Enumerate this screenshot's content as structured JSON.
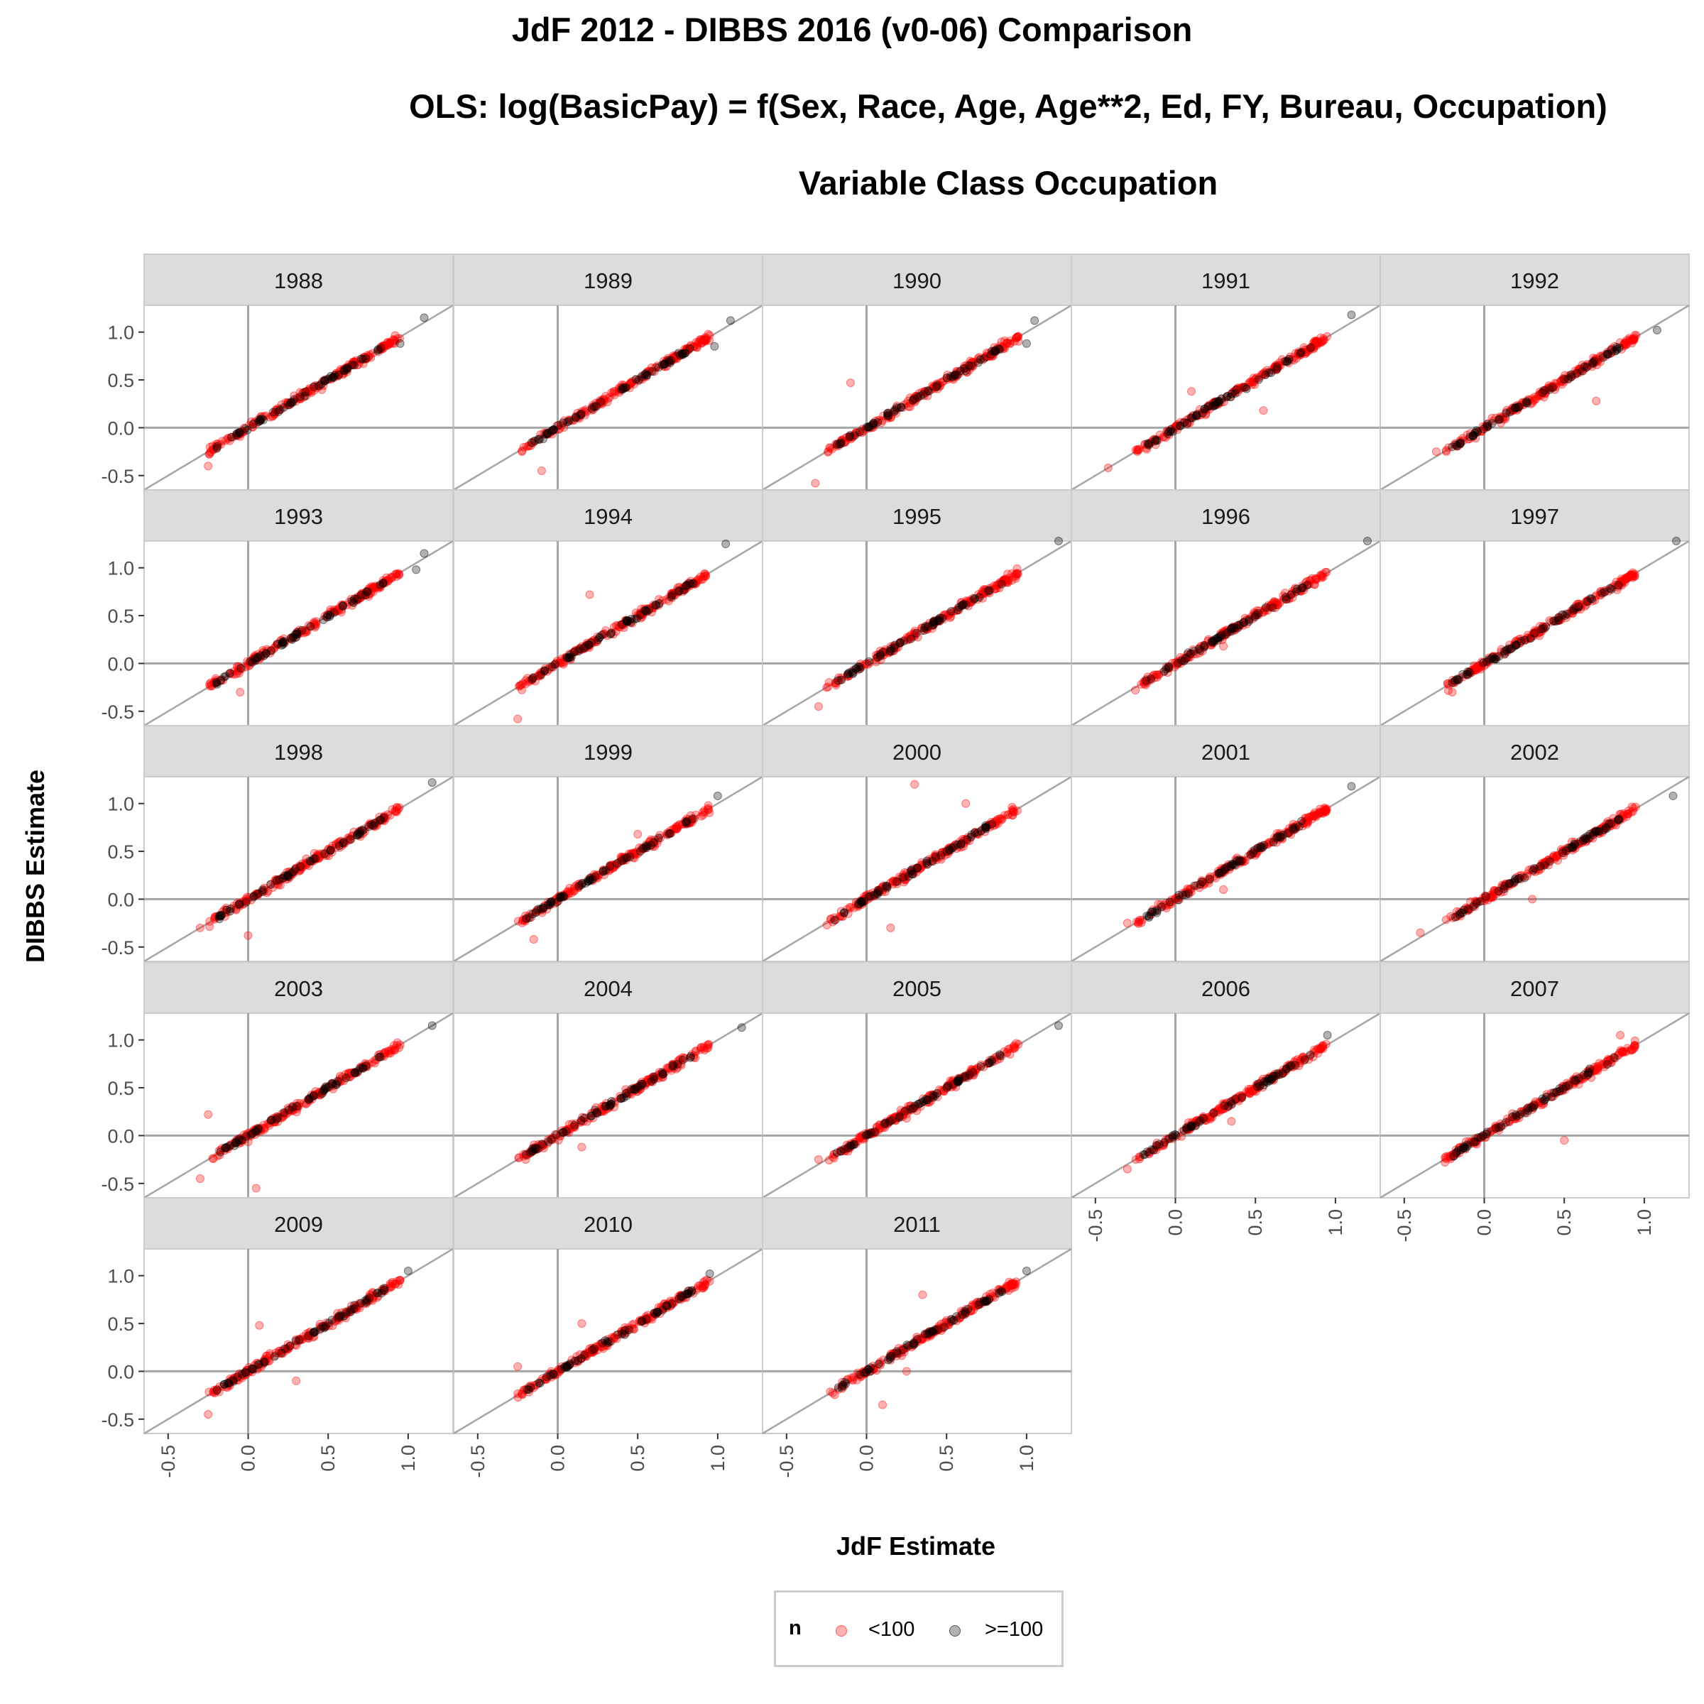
{
  "chart_data": {
    "type": "scatter",
    "title": "JdF 2012 - DIBBS 2016 (v0-06) Comparison",
    "subtitle": "OLS:  log(BasicPay) = f(Sex, Race, Age, Age**2, Ed, FY, Bureau, Occupation)",
    "subtitle2": "Variable Class Occupation",
    "xlabel": "JdF Estimate",
    "ylabel": "DIBBS Estimate",
    "xlim": [
      -0.65,
      1.28
    ],
    "ylim": [
      -0.65,
      1.28
    ],
    "x_ticks": [
      "-0.5",
      "0.0",
      "0.5",
      "1.0"
    ],
    "y_ticks": [
      "-0.5",
      "0.0",
      "0.5",
      "1.0"
    ],
    "x_tick_values": [
      -0.5,
      0.0,
      0.5,
      1.0
    ],
    "y_tick_values": [
      -0.5,
      0.0,
      0.5,
      1.0
    ],
    "reference_line": "y = x",
    "grid": false,
    "facets": [
      "1988",
      "1989",
      "1990",
      "1991",
      "1992",
      "1993",
      "1994",
      "1995",
      "1996",
      "1997",
      "1998",
      "1999",
      "2000",
      "2001",
      "2002",
      "2003",
      "2004",
      "2005",
      "2006",
      "2007",
      "2009",
      "2010",
      "2011"
    ],
    "facet_layout_columns": 5,
    "legend": {
      "title": "n",
      "placement": "bottom",
      "entries": [
        {
          "label": "<100",
          "color": "#ff0000"
        },
        {
          "label": ">=100",
          "color": "#000000"
        }
      ]
    },
    "series": [
      {
        "name": "<100",
        "color": "#ff0000",
        "opacity": 0.3,
        "description_points": "approx. 180 estimates per facet scattered along y = x from about -0.45 to 1.2"
      },
      {
        "name": ">=100",
        "color": "#000000",
        "opacity": 0.3,
        "description_points": "approx. 60 estimates per facet clustered along y = x from about -0.2 to 1.1"
      }
    ],
    "outliers": {
      "1988": [
        [
          -0.25,
          -0.4
        ],
        [
          1.1,
          1.15
        ],
        [
          0.95,
          0.88
        ]
      ],
      "1989": [
        [
          -0.1,
          -0.45
        ],
        [
          0.98,
          0.85
        ],
        [
          1.08,
          1.12
        ]
      ],
      "1990": [
        [
          -0.32,
          -0.58
        ],
        [
          -0.1,
          0.47
        ],
        [
          1.0,
          0.88
        ],
        [
          1.05,
          1.12
        ]
      ],
      "1991": [
        [
          -0.42,
          -0.42
        ],
        [
          0.1,
          0.38
        ],
        [
          0.55,
          0.18
        ],
        [
          1.1,
          1.18
        ]
      ],
      "1992": [
        [
          -0.3,
          -0.25
        ],
        [
          0.7,
          0.28
        ],
        [
          1.08,
          1.02
        ]
      ],
      "1993": [
        [
          -0.05,
          -0.3
        ],
        [
          1.05,
          0.98
        ],
        [
          1.1,
          1.15
        ]
      ],
      "1994": [
        [
          -0.25,
          -0.58
        ],
        [
          0.2,
          0.72
        ],
        [
          1.05,
          1.25
        ]
      ],
      "1995": [
        [
          -0.3,
          -0.45
        ],
        [
          1.2,
          1.28
        ]
      ],
      "1996": [
        [
          -0.25,
          -0.28
        ],
        [
          0.3,
          0.18
        ],
        [
          1.2,
          1.28
        ]
      ],
      "1997": [
        [
          -0.2,
          -0.3
        ],
        [
          1.2,
          1.28
        ],
        [
          0.58,
          0.62
        ]
      ],
      "1998": [
        [
          -0.3,
          -0.3
        ],
        [
          0.0,
          -0.38
        ],
        [
          1.15,
          1.22
        ]
      ],
      "1999": [
        [
          -0.15,
          -0.42
        ],
        [
          0.5,
          0.68
        ],
        [
          1.0,
          1.08
        ]
      ],
      "2000": [
        [
          0.3,
          1.2
        ],
        [
          0.62,
          1.0
        ],
        [
          0.15,
          -0.3
        ]
      ],
      "2001": [
        [
          -0.3,
          -0.25
        ],
        [
          0.3,
          0.1
        ],
        [
          1.1,
          1.18
        ]
      ],
      "2002": [
        [
          -0.4,
          -0.35
        ],
        [
          0.3,
          0.0
        ],
        [
          1.18,
          1.08
        ]
      ],
      "2003": [
        [
          -0.3,
          -0.45
        ],
        [
          -0.25,
          0.22
        ],
        [
          0.05,
          -0.55
        ],
        [
          1.15,
          1.15
        ]
      ],
      "2004": [
        [
          -0.2,
          -0.25
        ],
        [
          0.15,
          -0.12
        ],
        [
          1.15,
          1.13
        ]
      ],
      "2005": [
        [
          -0.3,
          -0.25
        ],
        [
          0.25,
          0.18
        ],
        [
          1.2,
          1.15
        ]
      ],
      "2006": [
        [
          -0.3,
          -0.35
        ],
        [
          0.35,
          0.15
        ],
        [
          0.95,
          1.05
        ]
      ],
      "2007": [
        [
          -0.2,
          -0.2
        ],
        [
          0.5,
          -0.05
        ],
        [
          0.85,
          1.05
        ]
      ],
      "2009": [
        [
          -0.25,
          -0.45
        ],
        [
          0.07,
          0.48
        ],
        [
          0.3,
          -0.1
        ],
        [
          1.0,
          1.05
        ]
      ],
      "2010": [
        [
          -0.25,
          0.05
        ],
        [
          0.15,
          0.5
        ],
        [
          0.35,
          0.35
        ],
        [
          0.95,
          1.02
        ]
      ],
      "2011": [
        [
          0.1,
          -0.35
        ],
        [
          0.35,
          0.8
        ],
        [
          0.25,
          0.0
        ],
        [
          1.0,
          1.05
        ]
      ]
    }
  }
}
